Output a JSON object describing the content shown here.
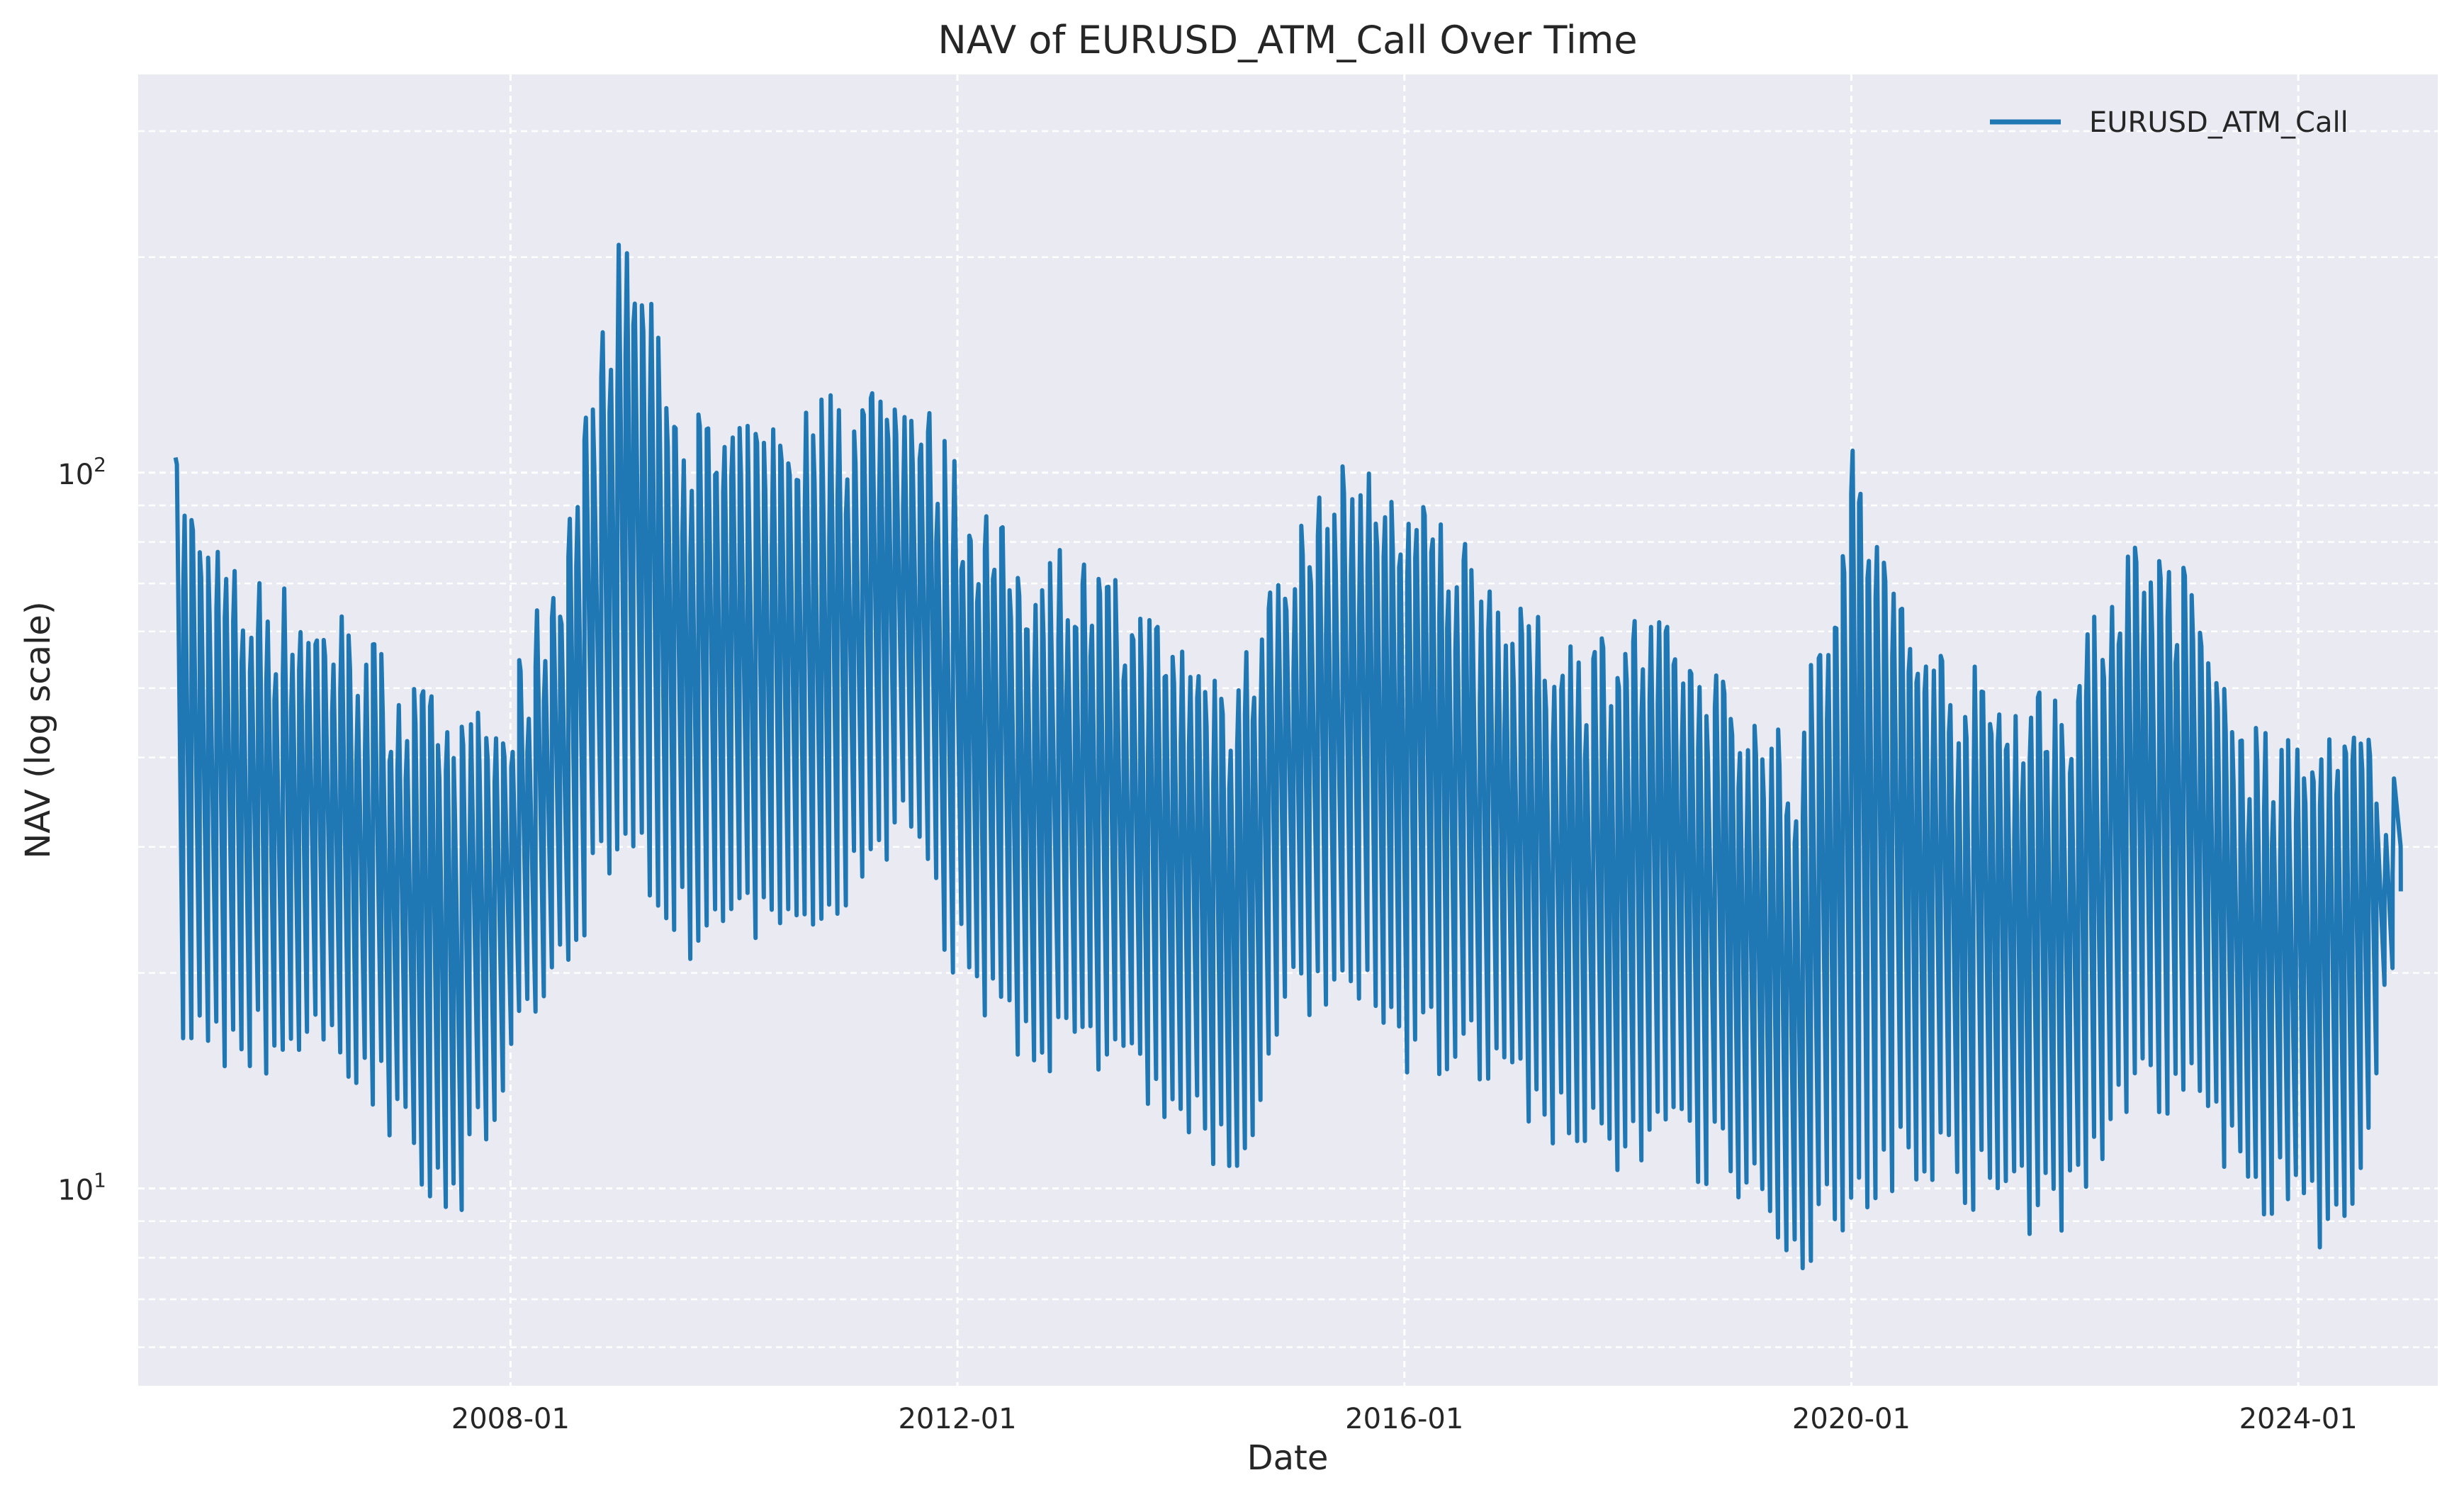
{
  "chart_data": {
    "type": "line",
    "title": "NAV of EURUSD_ATM_Call Over Time",
    "xlabel": "Date",
    "ylabel": "NAV (log scale)",
    "y_scale": "log",
    "xlim": [
      "2004-09-01",
      "2025-04-01"
    ],
    "ylim": [
      5.3,
      360
    ],
    "x_ticks": [
      "2008-01",
      "2012-01",
      "2016-01",
      "2020-01",
      "2024-01"
    ],
    "y_ticks": [
      {
        "value": 10,
        "label": "10",
        "sup": "1"
      },
      {
        "value": 100,
        "label": "10",
        "sup": "2"
      }
    ],
    "y_minor_ticks": [
      6,
      7,
      8,
      9,
      20,
      30,
      40,
      50,
      60,
      70,
      80,
      90,
      200,
      300
    ],
    "grid": true,
    "legend_position": "top-right",
    "colors": {
      "line": "#1f77b4",
      "plot_bg": "#eaeaf2",
      "grid": "#ffffff"
    },
    "series": [
      {
        "name": "EURUSD_ATM_Call",
        "cycle_months": 1,
        "x": [
          "2005-01",
          "2005-07",
          "2006-01",
          "2006-07",
          "2007-01",
          "2007-07",
          "2008-01",
          "2008-07",
          "2009-01",
          "2009-07",
          "2010-01",
          "2010-07",
          "2011-01",
          "2011-07",
          "2012-01",
          "2012-07",
          "2013-01",
          "2013-07",
          "2014-01",
          "2014-07",
          "2015-01",
          "2015-07",
          "2016-01",
          "2016-07",
          "2017-01",
          "2017-07",
          "2018-01",
          "2018-07",
          "2019-01",
          "2019-07",
          "2020-01",
          "2020-07",
          "2021-01",
          "2021-07",
          "2022-01",
          "2022-07",
          "2023-01",
          "2023-07",
          "2024-01",
          "2024-07",
          "2024-12"
        ],
        "peak": [
          105,
          75,
          70,
          65,
          55,
          45,
          50,
          90,
          230,
          130,
          115,
          125,
          135,
          145,
          105,
          80,
          80,
          70,
          60,
          55,
          85,
          105,
          95,
          85,
          65,
          60,
          65,
          60,
          50,
          42,
          110,
          65,
          55,
          50,
          55,
          85,
          75,
          45,
          42,
          45,
          40
        ],
        "trough": [
          16,
          15,
          15,
          15,
          12,
          9,
          14,
          20,
          32,
          22,
          22,
          21,
          25,
          30,
          20,
          16,
          15,
          14,
          12,
          10,
          17,
          18,
          15,
          15,
          13,
          11,
          11,
          11,
          10,
          8,
          9,
          11,
          10,
          9,
          9,
          13,
          13,
          10,
          9,
          8,
          26
        ]
      }
    ]
  }
}
